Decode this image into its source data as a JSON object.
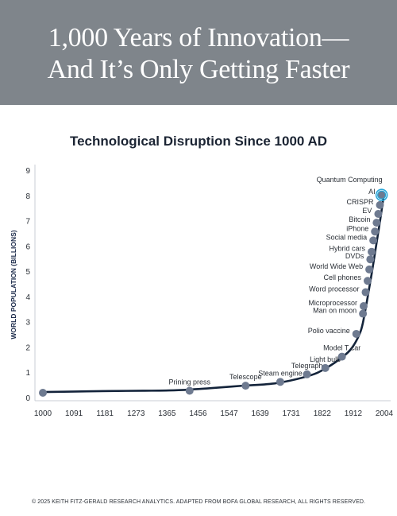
{
  "banner": {
    "line1": "1,000 Years of Innovation—",
    "line2": "And It’s Only Getting Faster"
  },
  "chart_data": {
    "type": "line",
    "title": "Technological Disruption Since 1000 AD",
    "xlabel": "",
    "ylabel": "WORLD POPULATION (BILLIONS)",
    "xlim": [
      1000,
      2024
    ],
    "ylim": [
      0,
      9
    ],
    "x_ticks": [
      "1000",
      "1091",
      "1181",
      "1273",
      "1365",
      "1456",
      "1547",
      "1639",
      "1731",
      "1822",
      "1912",
      "2004"
    ],
    "y_ticks": [
      "0",
      "1",
      "2",
      "3",
      "4",
      "5",
      "6",
      "7",
      "8",
      "9"
    ],
    "grid": false,
    "curve": [
      [
        1000,
        0.25
      ],
      [
        1100,
        0.27
      ],
      [
        1200,
        0.29
      ],
      [
        1300,
        0.3
      ],
      [
        1400,
        0.32
      ],
      [
        1500,
        0.4
      ],
      [
        1600,
        0.5
      ],
      [
        1700,
        0.6
      ],
      [
        1800,
        0.9
      ],
      [
        1850,
        1.2
      ],
      [
        1900,
        1.65
      ],
      [
        1927,
        2.0
      ],
      [
        1950,
        2.55
      ],
      [
        1960,
        3.0
      ],
      [
        1974,
        4.0
      ],
      [
        1987,
        5.0
      ],
      [
        1999,
        6.0
      ],
      [
        2011,
        7.0
      ],
      [
        2022,
        8.0
      ]
    ],
    "points": [
      {
        "x": 1000,
        "y": 0.22,
        "label": ""
      },
      {
        "x": 1440,
        "y": 0.3,
        "label": "Prining press"
      },
      {
        "x": 1608,
        "y": 0.5,
        "label": "Telescope"
      },
      {
        "x": 1712,
        "y": 0.65,
        "label": "Steam engine"
      },
      {
        "x": 1792,
        "y": 0.95,
        "label": "Telegraph"
      },
      {
        "x": 1847,
        "y": 1.2,
        "label": "Light bulb"
      },
      {
        "x": 1897,
        "y": 1.65,
        "label": "Model T car"
      },
      {
        "x": 1940,
        "y": 2.55,
        "label": "Polio vaccine"
      },
      {
        "x": 1960,
        "y": 3.35,
        "label": "Man on moon"
      },
      {
        "x": 1962,
        "y": 3.65,
        "label": "Microprocessor"
      },
      {
        "x": 1968,
        "y": 4.2,
        "label": "Word processor"
      },
      {
        "x": 1974,
        "y": 4.65,
        "label": "Cell phones"
      },
      {
        "x": 1979,
        "y": 5.1,
        "label": "World Wide Web"
      },
      {
        "x": 1982,
        "y": 5.5,
        "label": "DVDs"
      },
      {
        "x": 1986,
        "y": 5.8,
        "label": "Hybrid cars"
      },
      {
        "x": 1991,
        "y": 6.25,
        "label": "Social media"
      },
      {
        "x": 1996,
        "y": 6.6,
        "label": "iPhone"
      },
      {
        "x": 2001,
        "y": 6.95,
        "label": "Bitcoin"
      },
      {
        "x": 2006,
        "y": 7.3,
        "label": "EV"
      },
      {
        "x": 2011,
        "y": 7.65,
        "label": "CRISPR"
      },
      {
        "x": 2016,
        "y": 8.05,
        "label": "AI",
        "highlight": true
      },
      {
        "x": 2016,
        "y": 8.05,
        "label": "Quantum Computing",
        "label_only": true
      }
    ],
    "colors": {
      "line": "#13233a",
      "point": "#6e7a90",
      "highlight": "#2aa7d9",
      "axis": "#c9ced6",
      "text": "#2a2f36"
    }
  },
  "footer": "© 2025 KEITH FITZ-GERALD RESEARCH ANALYTICS. ADAPTED FROM BOFA GLOBAL RESEARCH, ALL RIGHTS RESERVED."
}
